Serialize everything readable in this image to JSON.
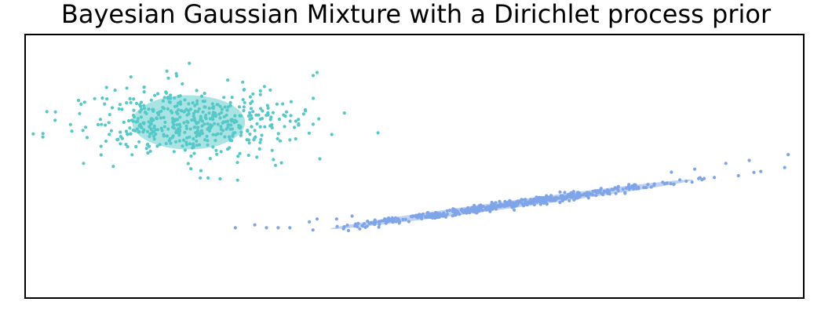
{
  "chart_data": {
    "type": "scatter",
    "title": "Bayesian Gaussian Mixture with a Dirichlet process prior",
    "xlabel": "",
    "ylabel": "",
    "xlim": [
      -10,
      10
    ],
    "ylim": [
      -3,
      6
    ],
    "ticks": "hidden",
    "grid": false,
    "legend": "none",
    "colors": {
      "cluster1": "#56c8c8",
      "cluster2": "#7fa5e8",
      "frame": "#000000"
    },
    "series": [
      {
        "count": 500,
        "color": "#56c8c8",
        "mean": [
          -5.8,
          3.0
        ],
        "std": [
          1.45,
          0.65
        ],
        "rotation_deg": 0,
        "outliers": [
          [
            -8.8,
            2.7
          ],
          [
            -8.6,
            3.3
          ],
          [
            -8.5,
            1.6
          ],
          [
            -7.9,
            3.8
          ],
          [
            -2.5,
            4.7
          ],
          [
            -2.6,
            4.6
          ],
          [
            -2.8,
            3.4
          ],
          [
            -3.2,
            2.4
          ],
          [
            -5.5,
            1.1
          ],
          [
            -5.3,
            1.1
          ]
        ]
      },
      {
        "count": 500,
        "color": "#7fa5e8",
        "mean": [
          2.5,
          0.2
        ],
        "std": [
          2.0,
          0.06
        ],
        "rotation_deg": 10.2,
        "outliers": [
          [
            -4.6,
            -0.6
          ],
          [
            -4.1,
            -0.5
          ],
          [
            -3.8,
            -0.6
          ],
          [
            -3.5,
            -0.6
          ],
          [
            -3.2,
            -0.6
          ],
          [
            -2.7,
            -0.4
          ],
          [
            -2.5,
            -0.3
          ],
          [
            -2.0,
            -0.3
          ],
          [
            -1.6,
            -0.2
          ],
          [
            6.6,
            1.3
          ],
          [
            7.2,
            1.4
          ],
          [
            8.0,
            1.6
          ],
          [
            8.6,
            1.7
          ],
          [
            9.6,
            1.9
          ]
        ]
      }
    ],
    "ellipses": [
      {
        "color": "#56c8c8",
        "opacity": 0.5,
        "center": [
          -5.8,
          3.0
        ],
        "width": 2.9,
        "height": 1.85,
        "angle_deg": 0
      },
      {
        "color": "#7fa5e8",
        "opacity": 0.5,
        "center": [
          2.5,
          0.2
        ],
        "width": 9.4,
        "height": 0.26,
        "angle_deg": 10.2
      }
    ]
  }
}
